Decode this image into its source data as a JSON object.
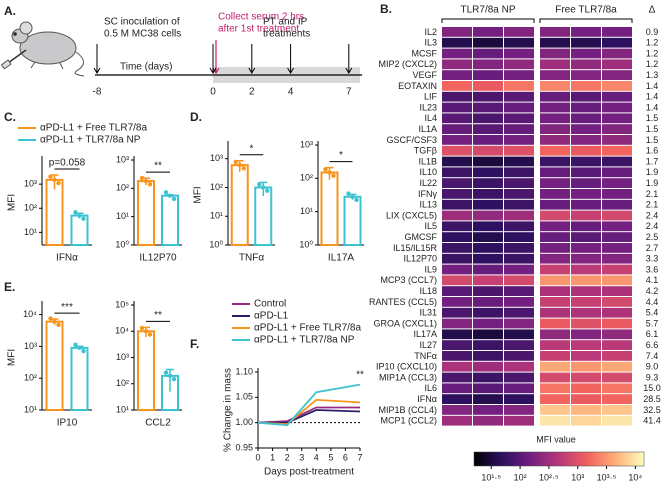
{
  "timeline": {
    "panel": "A.",
    "inoculation": [
      "SC inoculation of",
      "0.5 M MC38 cells"
    ],
    "serum": [
      "Collect serum 2 hrs",
      "after 1st treatment"
    ],
    "treatments": [
      "PT and IP",
      "treatments"
    ],
    "axis_label": "Time (days)",
    "days": [
      -8,
      0,
      2,
      4,
      7
    ]
  },
  "chart_data": [
    {
      "type": "bar",
      "panel": "C.",
      "xlabel": "IFNα",
      "ylabel": "MFI",
      "log_y": true,
      "annotation": "p=0.058",
      "series": [
        {
          "name": "αPD-L1 + Free TLR7/8a",
          "color": "#f7941d",
          "values": [
            1500
          ],
          "errors": [
            900
          ]
        },
        {
          "name": "αPD-L1 + TLR7/8a NP",
          "color": "#3cc3d2",
          "values": [
            50
          ],
          "errors": [
            12
          ]
        }
      ],
      "ylim": [
        3,
        10000
      ],
      "yticks": [
        {
          "value": 10,
          "label": "10¹"
        },
        {
          "value": 100,
          "label": "10²"
        },
        {
          "value": 1000,
          "label": "10³"
        }
      ]
    },
    {
      "type": "bar",
      "xlabel": "IL12P70",
      "log_y": true,
      "annotation": "**",
      "series": [
        {
          "color": "#f7941d",
          "values": [
            180
          ],
          "errors": [
            50
          ]
        },
        {
          "color": "#3cc3d2",
          "values": [
            55
          ],
          "errors": [
            4
          ]
        }
      ],
      "ylim": [
        1,
        1000
      ],
      "yticks": [
        {
          "value": 1,
          "label": "10⁰"
        },
        {
          "value": 10,
          "label": "10¹"
        },
        {
          "value": 100,
          "label": "10²"
        },
        {
          "value": 1000,
          "label": "10³"
        }
      ]
    },
    {
      "type": "bar",
      "panel": "D.",
      "xlabel": "TNFα",
      "ylabel": "MFI",
      "log_y": true,
      "annotation": "*",
      "series": [
        {
          "color": "#f7941d",
          "values": [
            600
          ],
          "errors": [
            250
          ]
        },
        {
          "color": "#3cc3d2",
          "values": [
            100
          ],
          "errors": [
            50
          ]
        }
      ],
      "ylim": [
        1,
        3000
      ],
      "yticks": [
        {
          "value": 1,
          "label": "10⁰"
        },
        {
          "value": 10,
          "label": "10¹"
        },
        {
          "value": 100,
          "label": "10²"
        },
        {
          "value": 1000,
          "label": "10³"
        }
      ]
    },
    {
      "type": "bar",
      "xlabel": "IL17A",
      "log_y": true,
      "annotation": "*",
      "series": [
        {
          "color": "#f7941d",
          "values": [
            150
          ],
          "errors": [
            60
          ]
        },
        {
          "color": "#3cc3d2",
          "values": [
            28
          ],
          "errors": [
            5
          ]
        }
      ],
      "ylim": [
        1,
        1000
      ],
      "yticks": [
        {
          "value": 1,
          "label": "10⁰"
        },
        {
          "value": 10,
          "label": "10¹"
        },
        {
          "value": 100,
          "label": "10²"
        },
        {
          "value": 1000,
          "label": "10³"
        }
      ]
    },
    {
      "type": "bar",
      "panel": "E.",
      "xlabel": "IP10",
      "ylabel": "MFI",
      "log_y": true,
      "annotation": "***",
      "series": [
        {
          "color": "#f7941d",
          "values": [
            6000
          ],
          "errors": [
            1200
          ]
        },
        {
          "color": "#3cc3d2",
          "values": [
            900
          ],
          "errors": [
            100
          ]
        }
      ],
      "ylim": [
        10,
        20000
      ],
      "yticks": [
        {
          "value": 10,
          "label": "10¹"
        },
        {
          "value": 100,
          "label": "10²"
        },
        {
          "value": 1000,
          "label": "10³"
        },
        {
          "value": 10000,
          "label": "10⁴"
        }
      ]
    },
    {
      "type": "bar",
      "xlabel": "CCL2",
      "log_y": true,
      "annotation": "**",
      "series": [
        {
          "color": "#f7941d",
          "values": [
            10000
          ],
          "errors": [
            4000
          ]
        },
        {
          "color": "#3cc3d2",
          "values": [
            200
          ],
          "errors": [
            150
          ]
        }
      ],
      "ylim": [
        10,
        100000
      ],
      "yticks": [
        {
          "value": 10,
          "label": "10¹"
        },
        {
          "value": 100,
          "label": "10²"
        },
        {
          "value": 1000,
          "label": "10³"
        },
        {
          "value": 10000,
          "label": "10⁴"
        },
        {
          "value": 100000,
          "label": "10⁵"
        }
      ]
    },
    {
      "type": "line",
      "panel": "F.",
      "xlabel": "Days post-treatment",
      "ylabel": "% Change in mass",
      "annotation": "**",
      "hline": 1,
      "x": [
        0,
        2,
        4,
        7
      ],
      "series": [
        {
          "name": "Control",
          "color": "#9b2a7f",
          "values": [
            1.0,
            1.003,
            1.03,
            1.03
          ]
        },
        {
          "name": "αPD-L1",
          "color": "#2d1e6b",
          "values": [
            1.0,
            1.0,
            1.025,
            1.022
          ]
        },
        {
          "name": "αPD-L1 + Free TLR7/8a",
          "color": "#f7941d",
          "values": [
            1.0,
            0.997,
            1.045,
            1.04
          ]
        },
        {
          "name": "αPD-L1 + TLR7/8a NP",
          "color": "#3cc3d2",
          "values": [
            1.0,
            0.995,
            1.06,
            1.075
          ]
        }
      ],
      "xlim": [
        0,
        7
      ],
      "xticks": [
        0,
        1,
        2,
        3,
        4,
        5,
        6,
        7
      ],
      "ylim": [
        0.95,
        1.1
      ],
      "yticks": [
        {
          "value": 0.95,
          "label": "0.95"
        },
        {
          "value": 1,
          "label": "1.00"
        },
        {
          "value": 1.05,
          "label": "1.05"
        },
        {
          "value": 1.1,
          "label": "1.10"
        }
      ]
    },
    {
      "type": "heatmap",
      "panel": "B.",
      "groups": [
        "TLR7/8a NP",
        "Free TLR7/8a"
      ],
      "delta_header": "Δ",
      "colorbar_label": "MFI value",
      "colormap": [
        "#000004",
        "#2c115f",
        "#721f81",
        "#b73779",
        "#f1605d",
        "#feb078",
        "#fcfdbf"
      ],
      "zlim": [
        1.2,
        4.15
      ],
      "zticks": [
        {
          "value": 1.5,
          "label": "10¹·⁵"
        },
        {
          "value": 2,
          "label": "10²"
        },
        {
          "value": 2.5,
          "label": "10²·⁵"
        },
        {
          "value": 3,
          "label": "10³"
        },
        {
          "value": 3.5,
          "label": "10³·⁵"
        },
        {
          "value": 4,
          "label": "10⁴"
        }
      ],
      "rows": [
        "IL2",
        "IL3",
        "MCSF",
        "MIP2 (CXCL2)",
        "VEGF",
        "EOTAXIN",
        "LIF",
        "IL23",
        "IL4",
        "IL1A",
        "GSCF/CSF3",
        "TGFβ",
        "IL1B",
        "IL10",
        "IL22",
        "IFNγ",
        "IL13",
        "LIX (CXCL5)",
        "IL5",
        "GMCSF",
        "IL15/IL15R",
        "IL12P70",
        "IL9",
        "MCP3 (CCL7)",
        "IL18",
        "RANTES (CCL5)",
        "IL31",
        "GROA (CXCL1)",
        "IL17A",
        "IL27",
        "TNFα",
        "IP10 (CXCL10)",
        "MIP1A (CCL3)",
        "IL6",
        "IFNα",
        "MIP1B (CCL4)",
        "MCP1 (CCL2)"
      ],
      "values": [
        [
          2.3,
          2.2,
          2.3,
          2.3,
          2.2,
          2.2
        ],
        [
          1.6,
          1.5,
          1.6,
          1.6,
          1.6,
          1.7
        ],
        [
          2.2,
          2.1,
          2.2,
          2.3,
          2.2,
          2.3
        ],
        [
          2.4,
          2.3,
          2.4,
          2.5,
          2.4,
          2.5
        ],
        [
          2.2,
          2.1,
          2.2,
          2.3,
          2.3,
          2.3
        ],
        [
          3.2,
          3.1,
          3.3,
          3.4,
          3.3,
          3.4
        ],
        [
          1.9,
          1.9,
          2.0,
          2.1,
          2.0,
          2.1
        ],
        [
          2.0,
          2.0,
          2.1,
          2.2,
          2.1,
          2.2
        ],
        [
          2.0,
          1.9,
          2.0,
          2.2,
          2.1,
          2.2
        ],
        [
          2.1,
          2.0,
          2.1,
          2.3,
          2.2,
          2.3
        ],
        [
          2.2,
          2.1,
          2.2,
          2.4,
          2.3,
          2.4
        ],
        [
          3.0,
          2.9,
          3.0,
          3.2,
          3.1,
          3.2
        ],
        [
          1.6,
          1.5,
          1.6,
          1.8,
          1.8,
          1.8
        ],
        [
          1.8,
          1.7,
          1.8,
          2.1,
          2.0,
          2.1
        ],
        [
          1.9,
          1.8,
          1.9,
          2.2,
          2.1,
          2.2
        ],
        [
          1.9,
          1.8,
          1.9,
          2.2,
          2.2,
          2.2
        ],
        [
          1.8,
          1.7,
          1.8,
          2.1,
          2.1,
          2.1
        ],
        [
          2.5,
          2.4,
          2.5,
          2.9,
          2.8,
          2.9
        ],
        [
          1.8,
          1.7,
          1.8,
          2.2,
          2.1,
          2.2
        ],
        [
          1.7,
          1.6,
          1.7,
          2.1,
          2.0,
          2.1
        ],
        [
          1.8,
          1.7,
          1.8,
          2.2,
          2.2,
          2.2
        ],
        [
          1.8,
          1.7,
          1.8,
          2.3,
          2.3,
          2.3
        ],
        [
          2.2,
          2.1,
          2.2,
          2.8,
          2.7,
          2.8
        ],
        [
          2.9,
          2.8,
          2.9,
          3.5,
          3.5,
          3.5
        ],
        [
          2.0,
          1.9,
          2.0,
          2.6,
          2.6,
          2.6
        ],
        [
          2.2,
          2.1,
          2.2,
          2.8,
          2.8,
          2.9
        ],
        [
          1.9,
          1.8,
          1.9,
          2.6,
          2.6,
          2.6
        ],
        [
          2.3,
          2.2,
          2.3,
          3.1,
          3.0,
          3.1
        ],
        [
          1.6,
          1.5,
          1.6,
          2.4,
          2.3,
          2.4
        ],
        [
          1.9,
          1.8,
          1.9,
          2.7,
          2.7,
          2.7
        ],
        [
          1.9,
          1.8,
          1.9,
          2.8,
          2.7,
          2.8
        ],
        [
          2.6,
          2.5,
          2.6,
          3.6,
          3.5,
          3.6
        ],
        [
          1.9,
          1.8,
          1.9,
          2.9,
          2.9,
          2.9
        ],
        [
          2.1,
          2.0,
          2.1,
          3.3,
          3.2,
          3.3
        ],
        [
          1.7,
          1.6,
          1.7,
          3.2,
          3.1,
          3.2
        ],
        [
          2.3,
          2.2,
          2.3,
          3.8,
          3.7,
          3.8
        ],
        [
          2.5,
          2.4,
          2.5,
          4.0,
          3.9,
          4.0
        ]
      ],
      "delta": [
        0.9,
        1.2,
        1.2,
        1.2,
        1.3,
        1.4,
        1.4,
        1.4,
        1.5,
        1.5,
        1.5,
        1.6,
        1.7,
        1.9,
        1.9,
        2.1,
        2.1,
        2.4,
        2.4,
        2.5,
        2.7,
        3.3,
        3.6,
        4.1,
        4.2,
        4.4,
        5.4,
        5.7,
        6.1,
        6.6,
        7.4,
        9.0,
        9.3,
        15.0,
        28.5,
        32.5,
        41.4
      ],
      "delta_labels": [
        "0.9",
        "1.2",
        "1.2",
        "1.2",
        "1.3",
        "1.4",
        "1.4",
        "1.4",
        "1.5",
        "1.5",
        "1.5",
        "1.6",
        "1.7",
        "1.9",
        "1.9",
        "2.1",
        "2.1",
        "2.4",
        "2.4",
        "2.5",
        "2.7",
        "3.3",
        "3.6",
        "4.1",
        "4.2",
        "4.4",
        "5.4",
        "5.7",
        "6.1",
        "6.6",
        "7.4",
        "9.0",
        "9.3",
        "15.0",
        "28.5",
        "32.5",
        "41.4"
      ]
    }
  ]
}
